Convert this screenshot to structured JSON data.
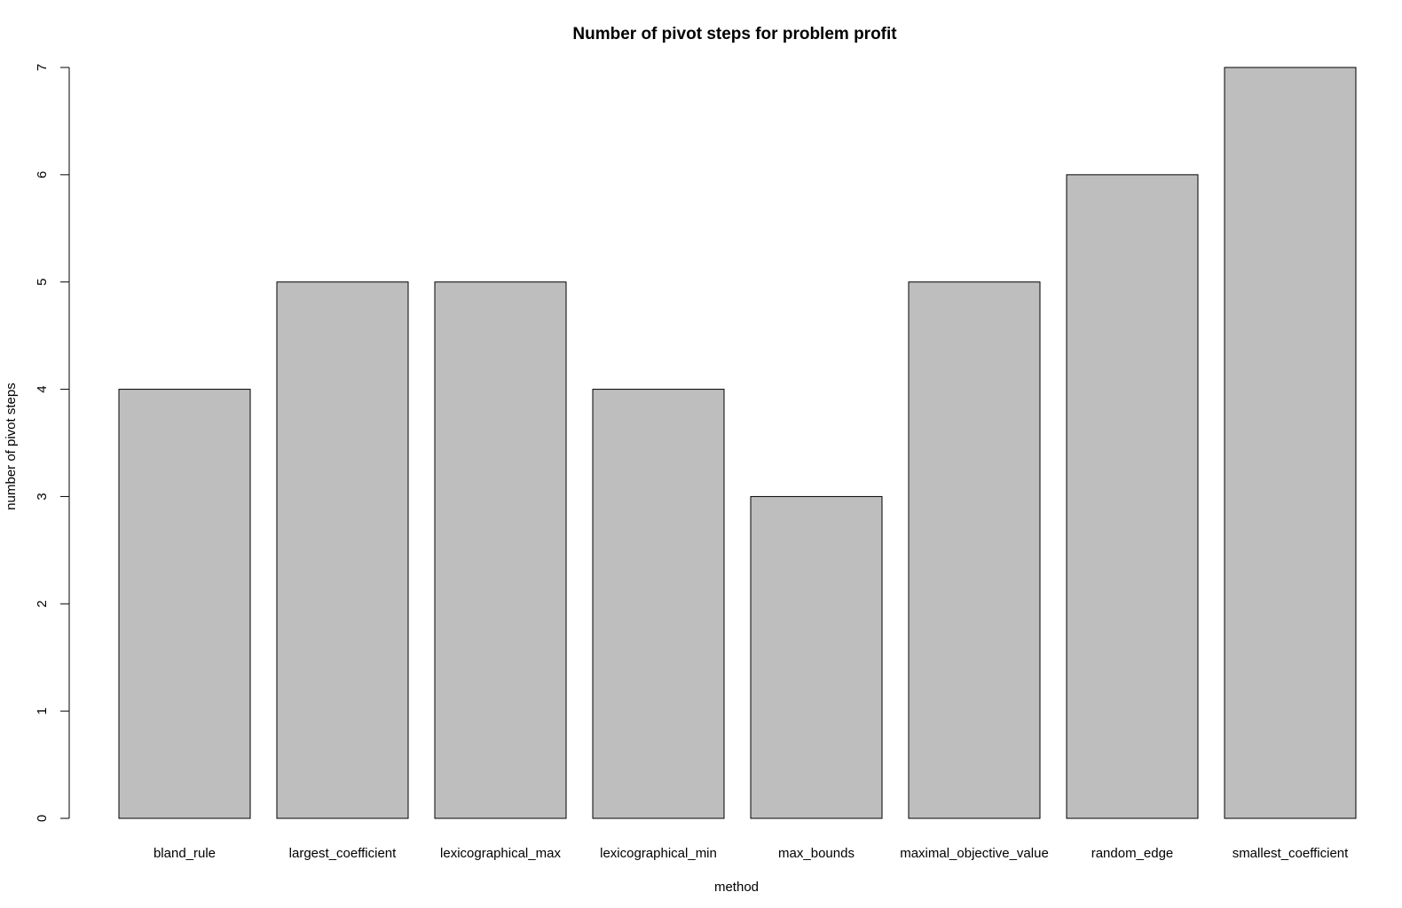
{
  "chart_data": {
    "type": "bar",
    "title": "Number of pivot steps for problem profit",
    "xlabel": "method",
    "ylabel": "number of pivot steps",
    "categories": [
      "bland_rule",
      "largest_coefficient",
      "lexicographical_max",
      "lexicographical_min",
      "max_bounds",
      "maximal_objective_value",
      "random_edge",
      "smallest_coefficient"
    ],
    "values": [
      4,
      5,
      5,
      4,
      3,
      5,
      6,
      7
    ],
    "ylim": [
      0,
      7
    ],
    "yticks": [
      "0",
      "1",
      "2",
      "3",
      "4",
      "5",
      "6",
      "7"
    ],
    "bar_color": "#bebebe",
    "grid": false,
    "legend": "none"
  }
}
